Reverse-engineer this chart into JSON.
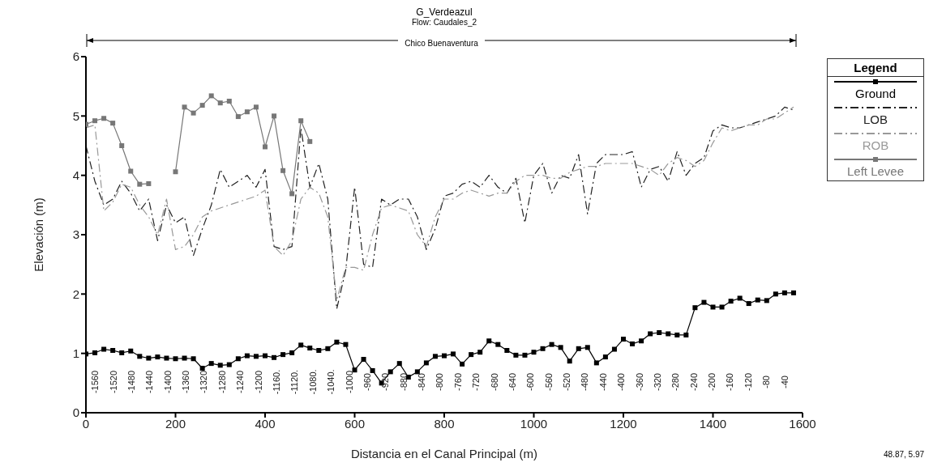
{
  "chart_data": {
    "type": "line",
    "title": "G_Verdeazul",
    "subtitle": "Flow: Caudales_2",
    "xlabel": "Distancia en el Canal Principal (m)",
    "ylabel": "Elevación (m)",
    "legend_title": "Legend",
    "legend": "right",
    "xlim": [
      0,
      1600
    ],
    "xticks": [
      0,
      200,
      400,
      600,
      800,
      1000,
      1200,
      1400,
      1600
    ],
    "ylim": [
      0,
      6
    ],
    "yticks": [
      0,
      1,
      2,
      3,
      4,
      5,
      6
    ],
    "series": [
      {
        "name": "Ground",
        "color": "#000000",
        "marker": "square",
        "line_style": "solid",
        "x": [
          0,
          20,
          40,
          60,
          80,
          100,
          120,
          140,
          160,
          180,
          200,
          220,
          240,
          260,
          280,
          300,
          320,
          340,
          360,
          380,
          400,
          420,
          440,
          460,
          480,
          500,
          520,
          540,
          560,
          580,
          600,
          620,
          640,
          660,
          680,
          700,
          720,
          740,
          760,
          780,
          800,
          820,
          840,
          860,
          880,
          900,
          920,
          940,
          960,
          980,
          1000,
          1020,
          1040,
          1060,
          1080,
          1100,
          1120,
          1140,
          1160,
          1180,
          1200,
          1220,
          1240,
          1260,
          1280,
          1300,
          1320,
          1340,
          1360,
          1380,
          1400,
          1420,
          1440,
          1460,
          1480,
          1500,
          1520,
          1540,
          1560,
          1580
        ],
        "values": [
          0.99,
          1.01,
          1.07,
          1.05,
          1.01,
          1.04,
          0.95,
          0.92,
          0.94,
          0.92,
          0.91,
          0.92,
          0.91,
          0.75,
          0.83,
          0.8,
          0.81,
          0.91,
          0.96,
          0.95,
          0.96,
          0.93,
          0.98,
          1.01,
          1.14,
          1.09,
          1.05,
          1.08,
          1.19,
          1.15,
          0.72,
          0.9,
          0.71,
          0.5,
          0.69,
          0.83,
          0.6,
          0.69,
          0.84,
          0.95,
          0.96,
          0.99,
          0.82,
          0.98,
          1.02,
          1.21,
          1.15,
          1.05,
          0.97,
          0.97,
          1.02,
          1.08,
          1.15,
          1.1,
          0.87,
          1.08,
          1.1,
          0.84,
          0.94,
          1.07,
          1.24,
          1.16,
          1.21,
          1.33,
          1.35,
          1.33,
          1.31,
          1.31,
          1.77,
          1.86,
          1.78,
          1.78,
          1.88,
          1.93,
          1.84,
          1.9,
          1.89,
          2.0,
          2.02,
          2.02
        ]
      },
      {
        "name": "LOB",
        "color": "#222222",
        "marker": "none",
        "line_style": "dashed",
        "x": [
          0,
          20,
          40,
          60,
          80,
          100,
          120,
          140,
          160,
          180,
          200,
          220,
          240,
          260,
          280,
          300,
          320,
          340,
          360,
          380,
          400,
          420,
          440,
          460,
          480,
          500,
          520,
          540,
          560,
          580,
          600,
          620,
          640,
          660,
          680,
          700,
          720,
          740,
          760,
          780,
          800,
          820,
          840,
          860,
          880,
          900,
          920,
          940,
          960,
          980,
          1000,
          1020,
          1040,
          1060,
          1080,
          1100,
          1120,
          1140,
          1160,
          1180,
          1200,
          1220,
          1240,
          1260,
          1280,
          1300,
          1320,
          1340,
          1360,
          1380,
          1400,
          1420,
          1440,
          1460,
          1480,
          1500,
          1520,
          1540,
          1560,
          1580
        ],
        "values": [
          4.5,
          3.9,
          3.5,
          3.6,
          3.9,
          3.7,
          3.4,
          3.6,
          2.9,
          3.5,
          3.2,
          3.3,
          2.65,
          3.1,
          3.5,
          4.1,
          3.8,
          3.9,
          4.0,
          3.8,
          4.1,
          2.8,
          2.75,
          2.8,
          4.8,
          3.8,
          4.2,
          3.6,
          1.75,
          2.4,
          3.8,
          2.5,
          2.45,
          3.6,
          3.5,
          3.6,
          3.6,
          3.3,
          2.75,
          3.1,
          3.65,
          3.7,
          3.85,
          3.9,
          3.8,
          4.0,
          3.8,
          3.7,
          3.95,
          3.2,
          4.0,
          4.2,
          3.7,
          4.0,
          3.95,
          4.35,
          3.35,
          4.2,
          4.35,
          4.35,
          4.35,
          4.4,
          3.8,
          4.1,
          4.15,
          3.9,
          4.4,
          4.0,
          4.2,
          4.3,
          4.75,
          4.85,
          4.8,
          4.8,
          4.85,
          4.9,
          4.95,
          5.0,
          5.15,
          5.1
        ]
      },
      {
        "name": "ROB",
        "color": "#999999",
        "marker": "none",
        "line_style": "dashed",
        "x": [
          0,
          20,
          40,
          60,
          80,
          100,
          120,
          140,
          160,
          180,
          200,
          220,
          240,
          260,
          280,
          300,
          320,
          340,
          360,
          380,
          400,
          420,
          440,
          460,
          480,
          500,
          520,
          540,
          560,
          580,
          600,
          620,
          640,
          660,
          680,
          700,
          720,
          740,
          760,
          780,
          800,
          820,
          840,
          860,
          880,
          900,
          920,
          940,
          960,
          980,
          1000,
          1020,
          1040,
          1060,
          1080,
          1100,
          1120,
          1140,
          1160,
          1180,
          1200,
          1220,
          1240,
          1260,
          1280,
          1300,
          1320,
          1340,
          1360,
          1380,
          1400,
          1420,
          1440,
          1460,
          1480,
          1500,
          1520,
          1540,
          1560,
          1580
        ],
        "values": [
          4.8,
          4.85,
          3.4,
          3.55,
          3.85,
          3.8,
          3.5,
          3.3,
          3.0,
          3.6,
          2.75,
          2.8,
          3.0,
          3.3,
          3.4,
          3.45,
          3.5,
          3.55,
          3.6,
          3.65,
          3.75,
          2.8,
          2.65,
          2.9,
          3.6,
          3.8,
          3.7,
          3.3,
          1.9,
          2.45,
          2.45,
          2.4,
          3.0,
          3.45,
          3.5,
          3.45,
          3.4,
          3.0,
          2.8,
          3.3,
          3.6,
          3.6,
          3.7,
          3.75,
          3.7,
          3.65,
          3.7,
          3.7,
          3.9,
          4.0,
          4.0,
          4.0,
          3.95,
          3.95,
          4.05,
          4.1,
          4.15,
          4.15,
          4.2,
          4.2,
          4.2,
          4.2,
          4.15,
          4.1,
          4.0,
          4.2,
          4.3,
          4.25,
          4.15,
          4.25,
          4.55,
          4.8,
          4.75,
          4.8,
          4.85,
          4.85,
          4.95,
          4.95,
          5.05,
          5.15
        ]
      },
      {
        "name": "Left Levee",
        "color": "#777777",
        "marker": "square",
        "line_style": "solid",
        "x": [
          0,
          20,
          40,
          60,
          80,
          100,
          120,
          140,
          160,
          180,
          200,
          220,
          240,
          260,
          280,
          300,
          320,
          340,
          360,
          380,
          400,
          420,
          440,
          460,
          480,
          500
        ],
        "values": [
          4.86,
          4.92,
          4.96,
          4.88,
          4.5,
          4.07,
          3.85,
          3.86,
          null,
          null,
          4.06,
          5.15,
          5.05,
          5.18,
          5.34,
          5.22,
          5.25,
          4.99,
          5.07,
          5.15,
          4.48,
          5.0,
          4.08,
          3.69,
          4.92,
          4.57
        ]
      }
    ],
    "annotations": [
      "Chico Buenaventura",
      "48.87, 5.97",
      "-1560",
      "-1520",
      "-1480",
      "-1440",
      "-1400",
      "-1360",
      "-1320",
      "-1280",
      "-1240",
      "-1200",
      "-1160.",
      "-1120.",
      "-1080.",
      "-1040.",
      "-1000",
      "-960",
      "-920",
      "-880",
      "-840",
      "-800",
      "-760",
      "-720",
      "-680",
      "-640",
      "-600",
      "-560",
      "-520",
      "-480",
      "-440",
      "-400",
      "-360",
      "-320",
      "-280",
      "-240",
      "-200",
      "-160",
      "-120",
      "-80",
      "-40"
    ]
  }
}
